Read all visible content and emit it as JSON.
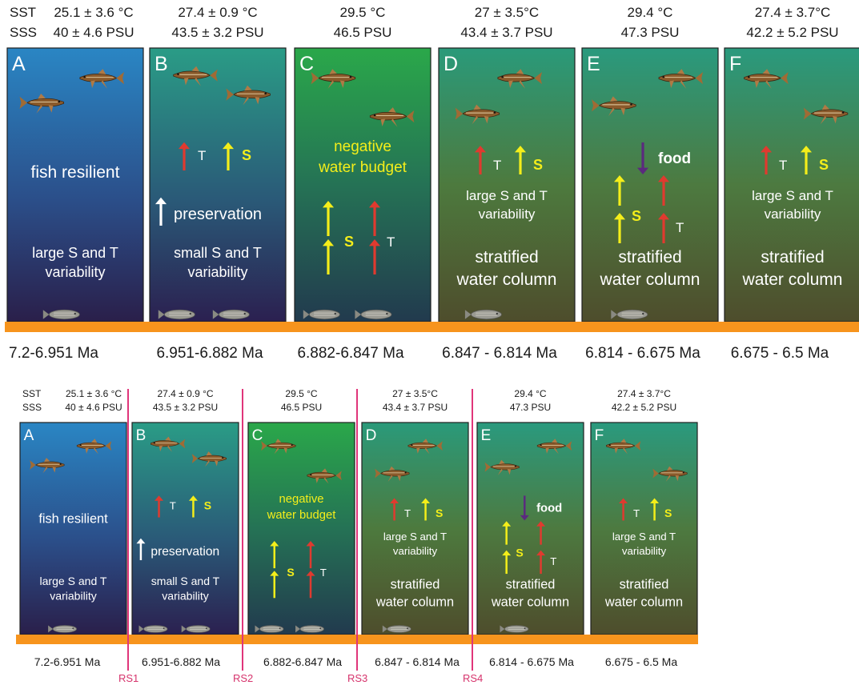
{
  "panels": [
    {
      "letter": "A",
      "sst": "25.1 ± 3.6 °C",
      "sss": "40 ± 4.6 PSU",
      "age": "7.2-6.951 Ma",
      "labels": [
        "fish resilient",
        "large S and T",
        "variability"
      ]
    },
    {
      "letter": "B",
      "sst": "27.4 ± 0.9 °C",
      "sss": "43.5 ± 3.2 PSU",
      "age": "6.951-6.882 Ma",
      "labels": [
        "preservation",
        "small S and T",
        "variability"
      ]
    },
    {
      "letter": "C",
      "sst": "29.5 °C",
      "sss": "46.5 PSU",
      "age": "6.882-6.847 Ma",
      "labels": [
        "negative",
        "water budget"
      ]
    },
    {
      "letter": "D",
      "sst": "27 ± 3.5°C",
      "sss": "43.4 ± 3.7 PSU",
      "age": "6.847 - 6.814 Ma",
      "labels": [
        "large S and T",
        "variability",
        "stratified",
        "water column"
      ]
    },
    {
      "letter": "E",
      "sst": "29.4 °C",
      "sss": "47.3 PSU",
      "age": "6.814 - 6.675 Ma",
      "labels": [
        "food",
        "stratified",
        "water column"
      ]
    },
    {
      "letter": "F",
      "sst": "27.4 ± 3.7°C",
      "sss": "42.2 ± 5.2 PSU",
      "age": "6.675 - 6.5 Ma",
      "labels": [
        "large S and T",
        "variability",
        "stratified",
        "water column"
      ]
    }
  ],
  "row_labels": {
    "sst": "SST",
    "sss": "SSS"
  },
  "arrow_labels": {
    "t": "T",
    "s": "S"
  },
  "rs_labels": [
    "RS1",
    "RS2",
    "RS3",
    "RS4"
  ],
  "colors": {
    "sediment": "#f7941d",
    "rs_line": "#e0357a",
    "yellow_arrow": "#f4ee1a",
    "red_arrow": "#e03a2f",
    "purple_arrow": "#5b2a7e"
  }
}
